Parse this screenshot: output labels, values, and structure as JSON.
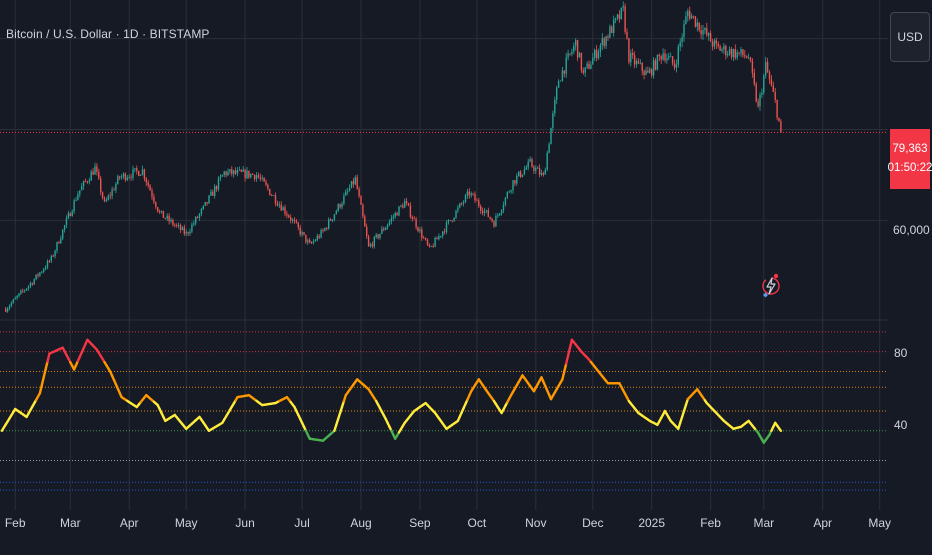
{
  "symbol_title": "Bitcoin / U.S. Dollar · 1D · BITSTAMP",
  "currency": "USD",
  "price_tag": {
    "price": "79,363",
    "countdown": "01:50:22",
    "color": "#f23645"
  },
  "colors": {
    "background": "#161a25",
    "up": "#26a69a",
    "down": "#ef5350",
    "grid": "#2a2e39"
  },
  "chart_data": [
    {
      "type": "candlestick",
      "title": "Bitcoin / U.S. Dollar · 1D · BITSTAMP",
      "y_tick_labels": [
        "60,000"
      ],
      "last_price": 79363,
      "ylim": [
        38500,
        108500
      ],
      "x_tick_labels": [
        "Feb",
        "Mar",
        "Apr",
        "May",
        "Jun",
        "Jul",
        "Aug",
        "Sep",
        "Oct",
        "Nov",
        "Dec",
        "2025",
        "Feb",
        "Mar",
        "Apr",
        "May"
      ],
      "close_anchors": [
        [
          "2024-01-27",
          40500
        ],
        [
          "2024-02-10",
          46500
        ],
        [
          "2024-02-20",
          51500
        ],
        [
          "2024-03-05",
          66000
        ],
        [
          "2024-03-14",
          71500
        ],
        [
          "2024-03-19",
          63500
        ],
        [
          "2024-03-27",
          69500
        ],
        [
          "2024-04-08",
          71000
        ],
        [
          "2024-04-17",
          61500
        ],
        [
          "2024-05-01",
          57000
        ],
        [
          "2024-05-10",
          62500
        ],
        [
          "2024-05-21",
          70500
        ],
        [
          "2024-06-07",
          70000
        ],
        [
          "2024-06-24",
          61000
        ],
        [
          "2024-07-05",
          54500
        ],
        [
          "2024-07-12",
          57500
        ],
        [
          "2024-07-29",
          69000
        ],
        [
          "2024-08-05",
          54000
        ],
        [
          "2024-08-24",
          64000
        ],
        [
          "2024-09-06",
          53500
        ],
        [
          "2024-09-27",
          66000
        ],
        [
          "2024-10-10",
          59500
        ],
        [
          "2024-10-20",
          68500
        ],
        [
          "2024-10-29",
          72500
        ],
        [
          "2024-11-05",
          69500
        ],
        [
          "2024-11-13",
          91000
        ],
        [
          "2024-11-22",
          99000
        ],
        [
          "2024-11-26",
          92000
        ],
        [
          "2024-12-05",
          98500
        ],
        [
          "2024-12-17",
          106000
        ],
        [
          "2024-12-20",
          96000
        ],
        [
          "2024-12-30",
          92000
        ],
        [
          "2025-01-07",
          97000
        ],
        [
          "2025-01-13",
          94000
        ],
        [
          "2025-01-20",
          106000
        ],
        [
          "2025-02-04",
          98000
        ],
        [
          "2025-02-21",
          96000
        ],
        [
          "2025-02-26",
          84500
        ],
        [
          "2025-03-02",
          94000
        ],
        [
          "2025-03-07",
          86000
        ],
        [
          "2025-03-10",
          79363
        ]
      ]
    },
    {
      "type": "line",
      "y_tick_labels": [
        "80",
        "40"
      ],
      "ylim": [
        5,
        95
      ],
      "levels": [
        {
          "value": 90,
          "color": "#f23645"
        },
        {
          "value": 80,
          "color": "#f23645"
        },
        {
          "value": 70,
          "color": "#ff9800"
        },
        {
          "value": 62,
          "color": "#ff9800"
        },
        {
          "value": 50,
          "color": "#ff9800"
        },
        {
          "value": 40,
          "color": "#4caf50"
        },
        {
          "value": 25,
          "color": "#b2b5be"
        },
        {
          "value": 14,
          "color": "#2962ff"
        },
        {
          "value": 10,
          "color": "#2962ff"
        }
      ],
      "color_bands": [
        {
          "min": 75,
          "color": "#f23645"
        },
        {
          "min": 55,
          "color": "#ff9800"
        },
        {
          "min": 40,
          "color": "#ffeb3b"
        },
        {
          "min": 0,
          "color": "#4caf50"
        }
      ],
      "series": [
        {
          "points": [
            [
              "2024-01-25",
              40
            ],
            [
              "2024-02-01",
              51
            ],
            [
              "2024-02-07",
              47
            ],
            [
              "2024-02-14",
              59
            ],
            [
              "2024-02-19",
              79
            ],
            [
              "2024-02-26",
              82
            ],
            [
              "2024-03-03",
              71
            ],
            [
              "2024-03-10",
              86
            ],
            [
              "2024-03-15",
              81
            ],
            [
              "2024-03-22",
              70
            ],
            [
              "2024-03-28",
              57
            ],
            [
              "2024-04-05",
              52
            ],
            [
              "2024-04-10",
              58
            ],
            [
              "2024-04-16",
              53
            ],
            [
              "2024-04-20",
              45
            ],
            [
              "2024-04-25",
              48
            ],
            [
              "2024-05-01",
              41
            ],
            [
              "2024-05-08",
              47
            ],
            [
              "2024-05-13",
              40
            ],
            [
              "2024-05-20",
              44
            ],
            [
              "2024-05-28",
              57
            ],
            [
              "2024-06-03",
              58
            ],
            [
              "2024-06-10",
              53
            ],
            [
              "2024-06-17",
              54
            ],
            [
              "2024-06-23",
              57
            ],
            [
              "2024-06-27",
              52
            ],
            [
              "2024-07-01",
              44
            ],
            [
              "2024-07-05",
              36
            ],
            [
              "2024-07-12",
              35
            ],
            [
              "2024-07-18",
              40
            ],
            [
              "2024-07-24",
              58
            ],
            [
              "2024-07-30",
              66
            ],
            [
              "2024-08-05",
              61
            ],
            [
              "2024-08-09",
              55
            ],
            [
              "2024-08-14",
              46
            ],
            [
              "2024-08-19",
              36
            ],
            [
              "2024-08-24",
              44
            ],
            [
              "2024-08-29",
              50
            ],
            [
              "2024-09-04",
              54
            ],
            [
              "2024-09-09",
              49
            ],
            [
              "2024-09-15",
              41
            ],
            [
              "2024-09-21",
              45
            ],
            [
              "2024-09-28",
              60
            ],
            [
              "2024-10-02",
              66
            ],
            [
              "2024-10-07",
              59
            ],
            [
              "2024-10-10",
              55
            ],
            [
              "2024-10-14",
              49
            ],
            [
              "2024-10-19",
              58
            ],
            [
              "2024-10-25",
              68
            ],
            [
              "2024-10-31",
              60
            ],
            [
              "2024-11-04",
              67
            ],
            [
              "2024-11-09",
              56
            ],
            [
              "2024-11-15",
              66
            ],
            [
              "2024-11-20",
              86
            ],
            [
              "2024-11-25",
              80
            ],
            [
              "2024-11-29",
              76
            ],
            [
              "2024-12-04",
              70
            ],
            [
              "2024-12-09",
              64
            ],
            [
              "2024-12-15",
              64
            ],
            [
              "2024-12-20",
              55
            ],
            [
              "2024-12-25",
              49
            ],
            [
              "2024-12-31",
              45
            ],
            [
              "2025-01-04",
              43
            ],
            [
              "2025-01-08",
              50
            ],
            [
              "2025-01-11",
              45
            ],
            [
              "2025-01-15",
              41
            ],
            [
              "2025-01-20",
              56
            ],
            [
              "2025-01-25",
              61
            ],
            [
              "2025-01-30",
              54
            ],
            [
              "2025-02-03",
              50
            ],
            [
              "2025-02-08",
              45
            ],
            [
              "2025-02-13",
              41
            ],
            [
              "2025-02-17",
              42
            ],
            [
              "2025-02-21",
              45
            ],
            [
              "2025-02-26",
              39
            ],
            [
              "2025-03-01",
              34
            ],
            [
              "2025-03-04",
              38
            ],
            [
              "2025-03-07",
              44
            ],
            [
              "2025-03-10",
              40
            ]
          ]
        }
      ]
    }
  ]
}
